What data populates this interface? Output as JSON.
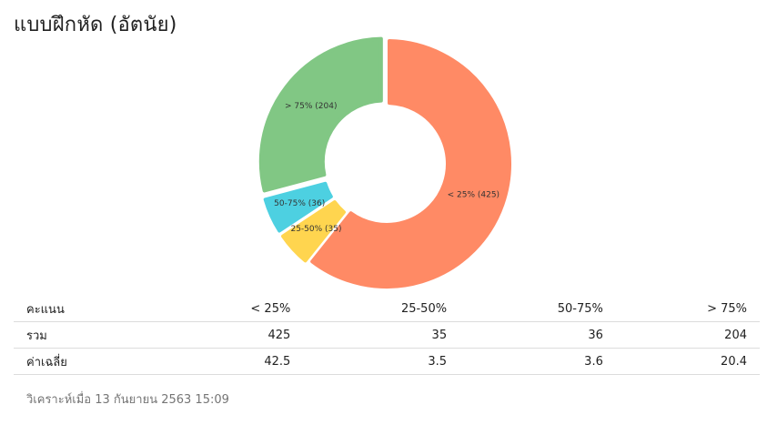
{
  "header": {
    "title": "แบบฝึกหัด (อัตนัย)"
  },
  "chart_data": {
    "type": "pie",
    "categories": [
      "< 25%",
      "25-50%",
      "50-75%",
      "> 75%"
    ],
    "values": [
      425,
      35,
      36,
      204
    ],
    "labels": [
      "< 25% (425)",
      "25-50% (35)",
      "50-75% (36)",
      "> 75% (204)"
    ],
    "colors": [
      "#ff8a65",
      "#ffd54f",
      "#4dd0e1",
      "#81c784"
    ]
  },
  "table": {
    "header_label": "คะแนน",
    "columns": [
      "< 25%",
      "25-50%",
      "50-75%",
      "> 75%"
    ],
    "rows": [
      {
        "label": "รวม",
        "values": [
          "425",
          "35",
          "36",
          "204"
        ]
      },
      {
        "label": "ค่าเฉลี่ย",
        "values": [
          "42.5",
          "3.5",
          "3.6",
          "20.4"
        ]
      }
    ]
  },
  "footer": {
    "text": "วิเคราะห์เมื่อ 13 กันยายน 2563 15:09"
  }
}
